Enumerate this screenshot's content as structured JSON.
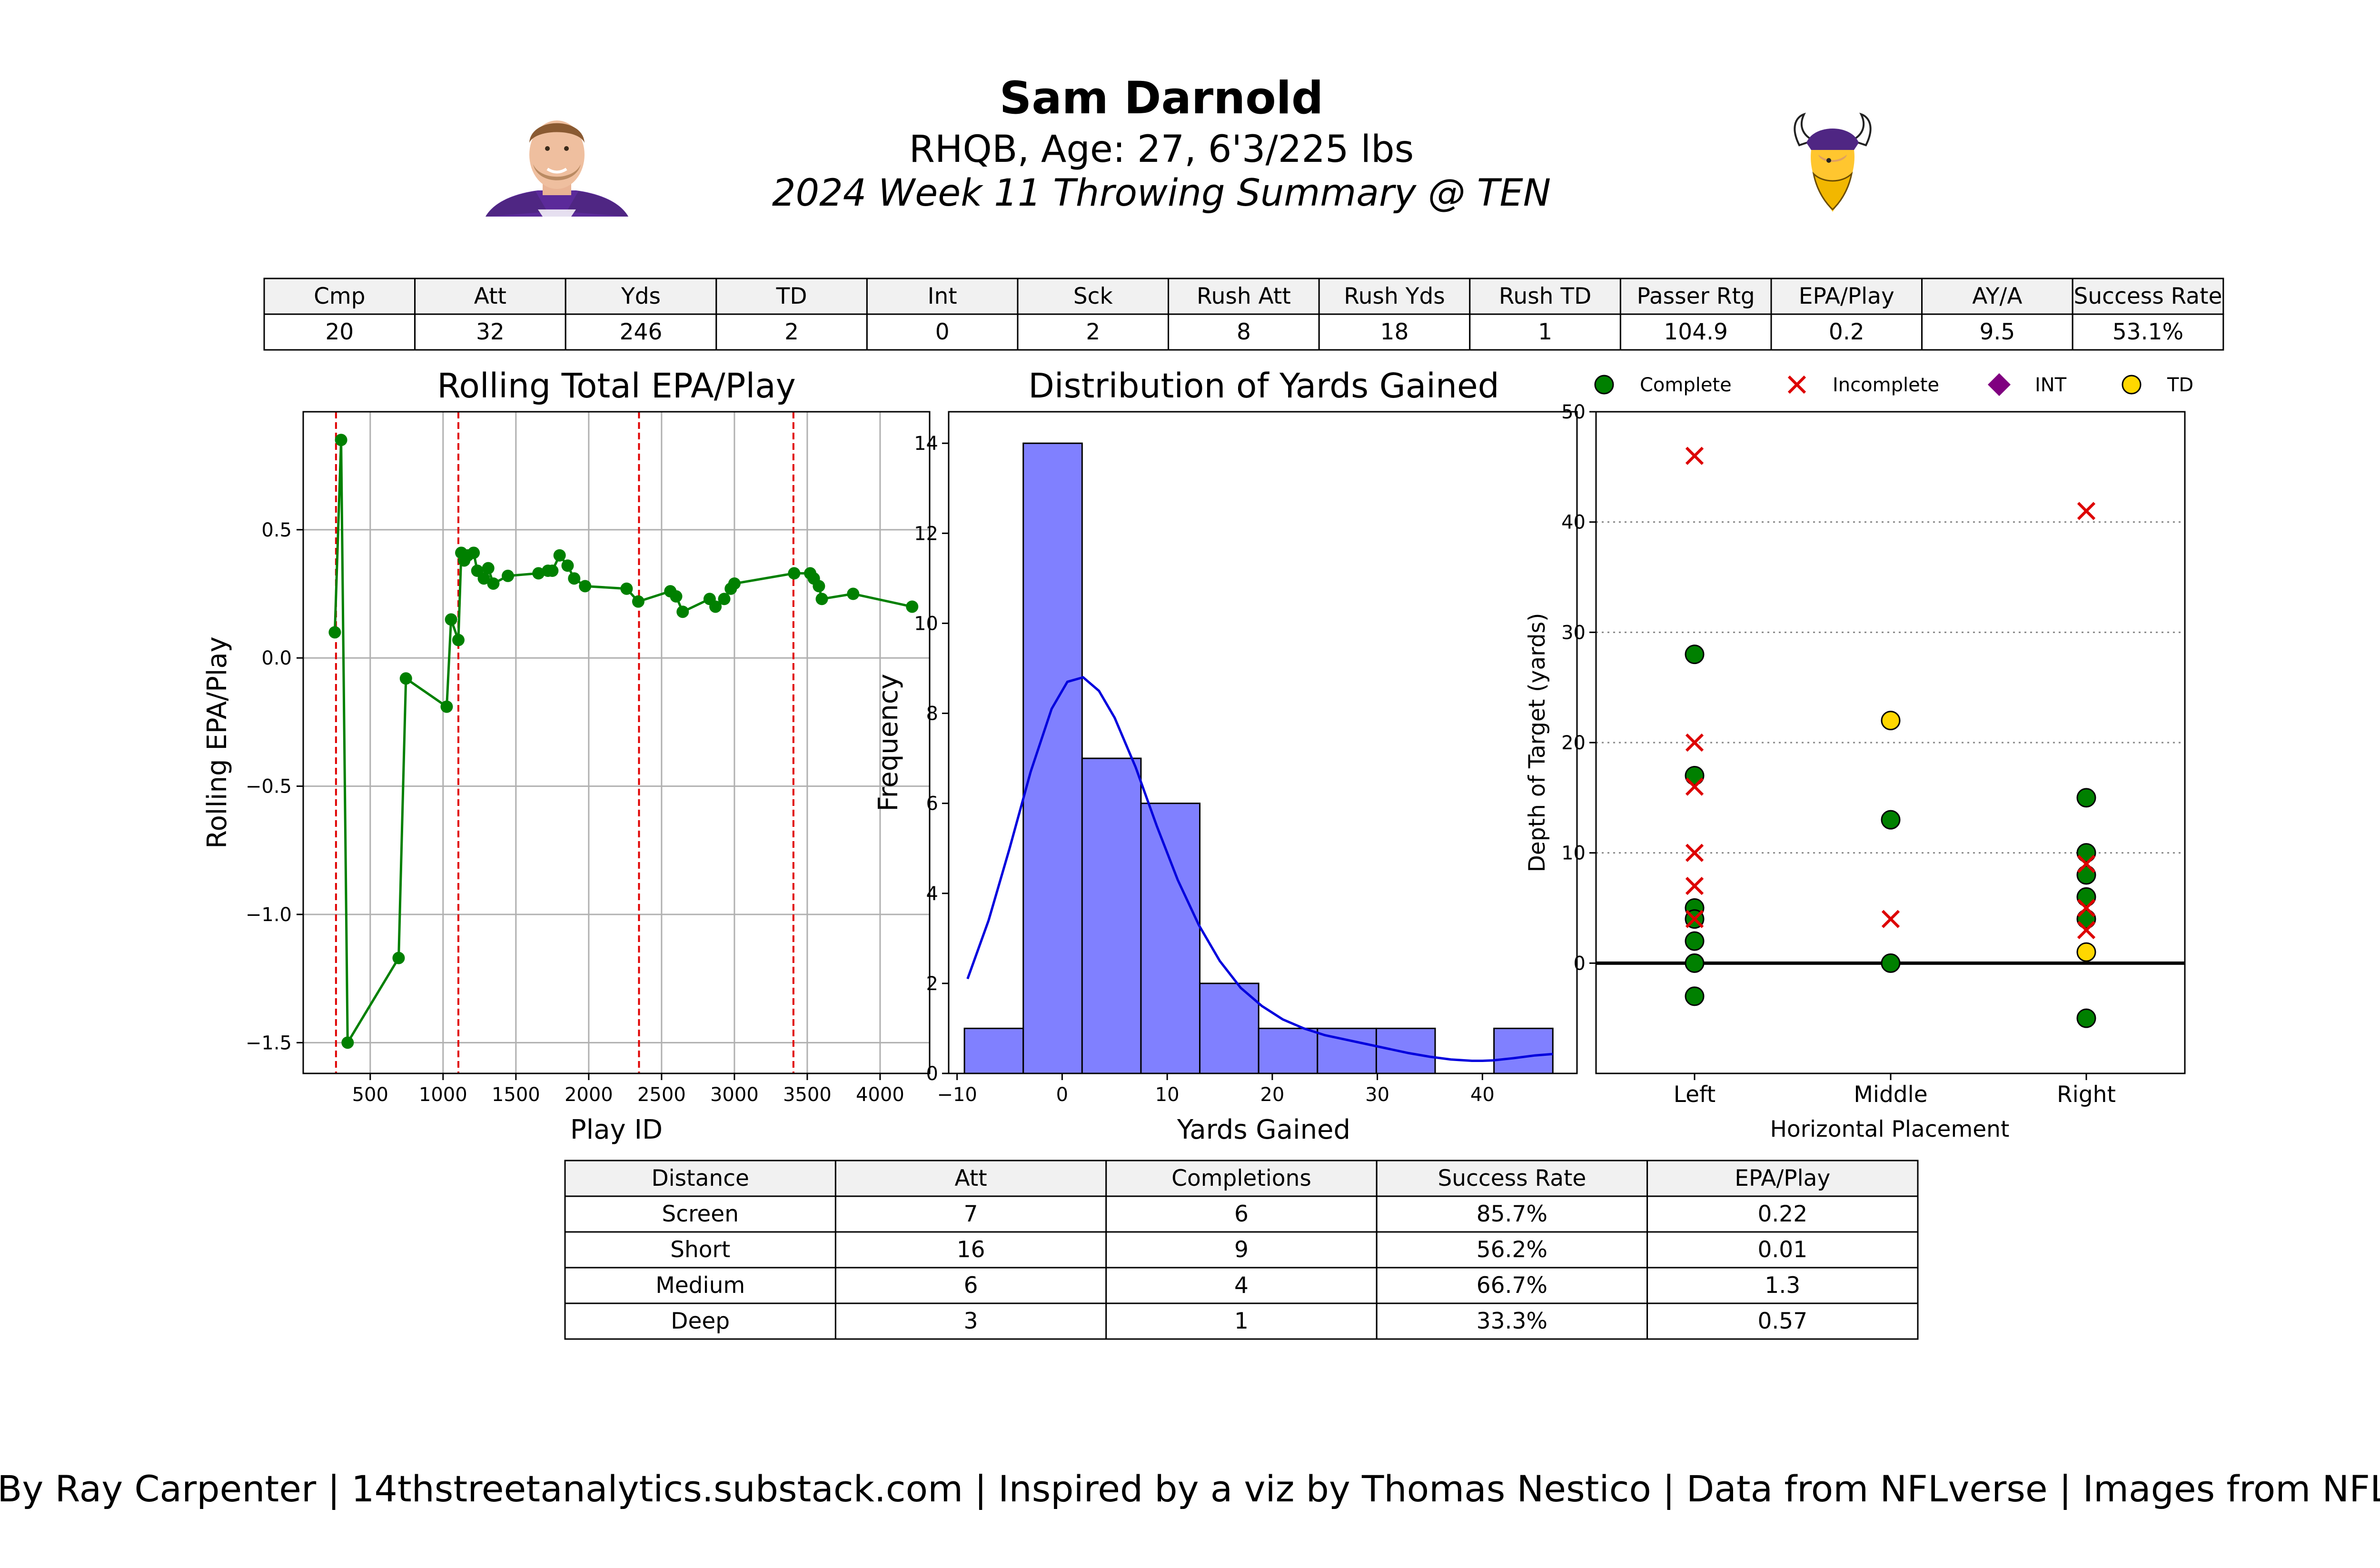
{
  "header": {
    "name": "Sam Darnold",
    "subtitle": "RHQB, Age: 27, 6'3/225 lbs",
    "summary": "2024 Week 11 Throwing Summary @ TEN",
    "team_color": "#4F2683",
    "team_gold": "#FFC62F"
  },
  "stats_table": {
    "headers": [
      "Cmp",
      "Att",
      "Yds",
      "TD",
      "Int",
      "Sck",
      "Rush Att",
      "Rush Yds",
      "Rush TD",
      "Passer Rtg",
      "EPA/Play",
      "AY/A",
      "Success Rate"
    ],
    "values": [
      "20",
      "32",
      "246",
      "2",
      "0",
      "2",
      "8",
      "18",
      "1",
      "104.9",
      "0.2",
      "9.5",
      "53.1%"
    ]
  },
  "distance_table": {
    "headers": [
      "Distance",
      "Att",
      "Completions",
      "Success Rate",
      "EPA/Play"
    ],
    "rows": [
      [
        "Screen",
        "7",
        "6",
        "85.7%",
        "0.22"
      ],
      [
        "Short",
        "16",
        "9",
        "56.2%",
        "0.01"
      ],
      [
        "Medium",
        "6",
        "4",
        "66.7%",
        "1.3"
      ],
      [
        "Deep",
        "3",
        "1",
        "33.3%",
        "0.57"
      ]
    ]
  },
  "footer": {
    "credits": "By Ray Carpenter | 14thstreetanalytics.substack.com | Inspired by a viz by Thomas Nestico | Data from NFLverse | Images from NFL.com"
  },
  "chart_data": [
    {
      "type": "line",
      "title": "Rolling Total EPA/Play",
      "xlabel": "Play ID",
      "ylabel": "Rolling EPA/Play",
      "xlim": [
        40,
        4340
      ],
      "ylim": [
        -1.62,
        0.96
      ],
      "xticks": [
        500,
        1000,
        1500,
        2000,
        2500,
        3000,
        3500,
        4000
      ],
      "yticks": [
        -1.5,
        -1.0,
        -0.5,
        0.0,
        0.5
      ],
      "ytick_labels": [
        "−1.5",
        "−1.0",
        "−0.5",
        "0.0",
        "0.5"
      ],
      "grid": true,
      "color": "#008000",
      "quarter_lines_color": "#e00000",
      "quarter_lines": [
        265,
        1105,
        2345,
        3405
      ],
      "points": [
        [
          257,
          0.1
        ],
        [
          300,
          0.85
        ],
        [
          345,
          -1.5
        ],
        [
          695,
          -1.17
        ],
        [
          745,
          -0.08
        ],
        [
          1025,
          -0.19
        ],
        [
          1055,
          0.15
        ],
        [
          1105,
          0.07
        ],
        [
          1125,
          0.41
        ],
        [
          1145,
          0.38
        ],
        [
          1170,
          0.4
        ],
        [
          1210,
          0.41
        ],
        [
          1235,
          0.34
        ],
        [
          1280,
          0.31
        ],
        [
          1310,
          0.35
        ],
        [
          1345,
          0.29
        ],
        [
          1445,
          0.32
        ],
        [
          1655,
          0.33
        ],
        [
          1720,
          0.34
        ],
        [
          1750,
          0.34
        ],
        [
          1800,
          0.4
        ],
        [
          1855,
          0.36
        ],
        [
          1900,
          0.31
        ],
        [
          1975,
          0.28
        ],
        [
          2260,
          0.27
        ],
        [
          2340,
          0.22
        ],
        [
          2560,
          0.26
        ],
        [
          2600,
          0.24
        ],
        [
          2645,
          0.18
        ],
        [
          2830,
          0.23
        ],
        [
          2870,
          0.2
        ],
        [
          2930,
          0.23
        ],
        [
          2975,
          0.27
        ],
        [
          3000,
          0.29
        ],
        [
          3410,
          0.33
        ],
        [
          3520,
          0.33
        ],
        [
          3545,
          0.31
        ],
        [
          3580,
          0.28
        ],
        [
          3600,
          0.23
        ],
        [
          3815,
          0.25
        ],
        [
          4220,
          0.2
        ]
      ]
    },
    {
      "type": "bar",
      "title": "Distribution of Yards Gained",
      "xlabel": "Yards Gained",
      "ylabel": "Frequency",
      "xlim": [
        -10.8,
        49.0
      ],
      "ylim": [
        0,
        14.7
      ],
      "xticks": [
        -10,
        0,
        10,
        20,
        30,
        40
      ],
      "xtick_labels": [
        "−10",
        "0",
        "10",
        "20",
        "30",
        "40"
      ],
      "yticks": [
        0,
        2,
        4,
        6,
        8,
        10,
        12,
        14
      ],
      "bin_edges": [
        -9.3,
        -3.7,
        1.9,
        7.5,
        13.1,
        18.7,
        24.3,
        29.9,
        35.5,
        41.1,
        46.7
      ],
      "values": [
        1,
        14,
        7,
        6,
        2,
        1,
        1,
        1,
        0,
        1
      ],
      "bar_color": "#8080ff",
      "kde_color": "#0000dd",
      "kde": [
        [
          -9.0,
          2.1
        ],
        [
          -7.0,
          3.4
        ],
        [
          -5.0,
          5.0
        ],
        [
          -3.0,
          6.7
        ],
        [
          -1.0,
          8.1
        ],
        [
          0.5,
          8.7
        ],
        [
          2.0,
          8.8
        ],
        [
          3.5,
          8.5
        ],
        [
          5.0,
          7.9
        ],
        [
          7.0,
          6.8
        ],
        [
          9.0,
          5.5
        ],
        [
          11.0,
          4.3
        ],
        [
          13.0,
          3.3
        ],
        [
          15.0,
          2.5
        ],
        [
          17.0,
          1.9
        ],
        [
          19.0,
          1.5
        ],
        [
          21.0,
          1.2
        ],
        [
          23.0,
          1.0
        ],
        [
          25.0,
          0.85
        ],
        [
          27.0,
          0.75
        ],
        [
          29.0,
          0.65
        ],
        [
          31.0,
          0.55
        ],
        [
          33.0,
          0.45
        ],
        [
          35.0,
          0.37
        ],
        [
          37.0,
          0.31
        ],
        [
          39.0,
          0.28
        ],
        [
          40.0,
          0.28
        ],
        [
          41.0,
          0.29
        ],
        [
          43.0,
          0.34
        ],
        [
          45.0,
          0.4
        ],
        [
          46.7,
          0.43
        ]
      ]
    },
    {
      "type": "scatter",
      "xlabel": "Horizontal Placement",
      "ylabel": "Depth of Target (yards)",
      "categories": [
        "Left",
        "Middle",
        "Right"
      ],
      "ylim": [
        -10,
        50
      ],
      "yticks": [
        0,
        10,
        20,
        30,
        40,
        50
      ],
      "grid": "dotted horizontal",
      "legend_placement": "top",
      "series": [
        {
          "name": "Complete",
          "marker": "circle",
          "color": "#008000",
          "points": [
            [
              "Left",
              28
            ],
            [
              "Left",
              17
            ],
            [
              "Left",
              5
            ],
            [
              "Left",
              4
            ],
            [
              "Left",
              2
            ],
            [
              "Left",
              0
            ],
            [
              "Left",
              -3
            ],
            [
              "Middle",
              13
            ],
            [
              "Middle",
              0
            ],
            [
              "Right",
              15
            ],
            [
              "Right",
              10
            ],
            [
              "Right",
              8
            ],
            [
              "Right",
              6
            ],
            [
              "Right",
              4
            ],
            [
              "Right",
              -5
            ]
          ]
        },
        {
          "name": "Incomplete",
          "marker": "x",
          "color": "#dd0000",
          "points": [
            [
              "Left",
              46
            ],
            [
              "Left",
              20
            ],
            [
              "Left",
              16
            ],
            [
              "Left",
              10
            ],
            [
              "Left",
              7
            ],
            [
              "Left",
              4
            ],
            [
              "Middle",
              4
            ],
            [
              "Right",
              41
            ],
            [
              "Right",
              9
            ],
            [
              "Right",
              5
            ],
            [
              "Right",
              3
            ]
          ]
        },
        {
          "name": "INT",
          "marker": "diamond",
          "color": "#800080",
          "points": []
        },
        {
          "name": "TD",
          "marker": "circle",
          "color": "#ffd700",
          "points": [
            [
              "Middle",
              22
            ],
            [
              "Right",
              1
            ]
          ]
        }
      ]
    }
  ]
}
